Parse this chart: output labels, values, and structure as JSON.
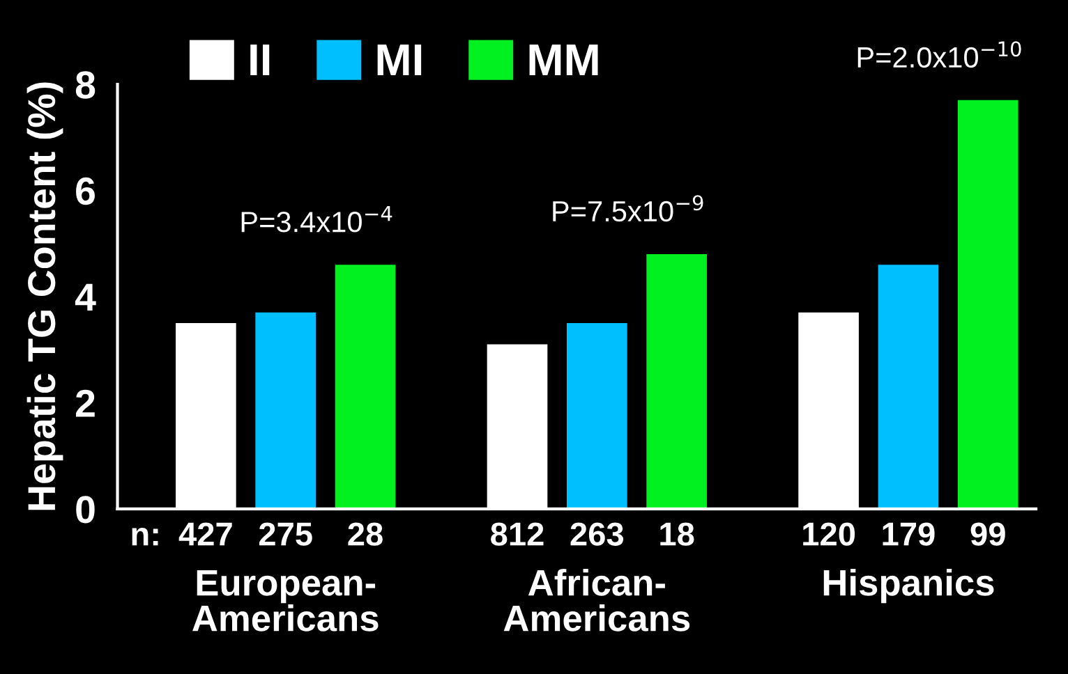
{
  "chart_data": {
    "type": "bar",
    "categories": [
      "European-Americans",
      "African-Americans",
      "Hispanics"
    ],
    "ylabel": "Hepatic TG Content (%)",
    "series": [
      {
        "name": "II",
        "color": "#ffffff",
        "values": [
          3.5,
          3.1,
          3.7
        ]
      },
      {
        "name": "MI",
        "color": "#00bfff",
        "values": [
          3.7,
          3.5,
          4.6
        ]
      },
      {
        "name": "MM",
        "color": "#00f020",
        "values": [
          4.6,
          4.8,
          7.7
        ]
      }
    ],
    "ylim": [
      0,
      8
    ],
    "yticks": [
      0,
      2,
      4,
      6,
      8
    ],
    "annotations": [
      "P=3.4x10$^{−4}$",
      "P=7.5x10$^{−9}$",
      "P=2.0x10$^{−10}$",
      "n:",
      "427",
      "275",
      "28",
      "812",
      "263",
      "18",
      "120",
      "179",
      "99"
    ],
    "legend": "top",
    "grid": false
  }
}
